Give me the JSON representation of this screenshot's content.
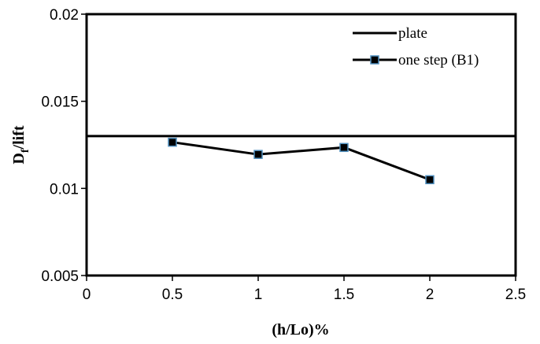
{
  "chart_data": {
    "type": "line",
    "xlabel": "(h/Lo)%",
    "ylabel": {
      "main": "D",
      "sub": "f",
      "rest": "/lift"
    },
    "xlim": [
      0,
      2.5
    ],
    "ylim": [
      0.005,
      0.02
    ],
    "x_ticks": [
      "0",
      "0.5",
      "1",
      "1.5",
      "2",
      "2.5"
    ],
    "y_ticks": [
      "0.005",
      "0.01",
      "0.015",
      "0.02"
    ],
    "grid": false,
    "legend_position": "top-right",
    "series": [
      {
        "name": "plate",
        "style": "line",
        "color": "#000000",
        "points": [
          [
            0,
            0.013
          ],
          [
            2.5,
            0.013
          ]
        ]
      },
      {
        "name": "one step (B1)",
        "style": "line-markers",
        "color": "#000000",
        "marker_color": "#000000",
        "marker_edge": "#4f8fbf",
        "points": [
          [
            0.5,
            0.01265
          ],
          [
            1.0,
            0.01195
          ],
          [
            1.5,
            0.01235
          ],
          [
            2.0,
            0.0105
          ]
        ]
      }
    ]
  }
}
